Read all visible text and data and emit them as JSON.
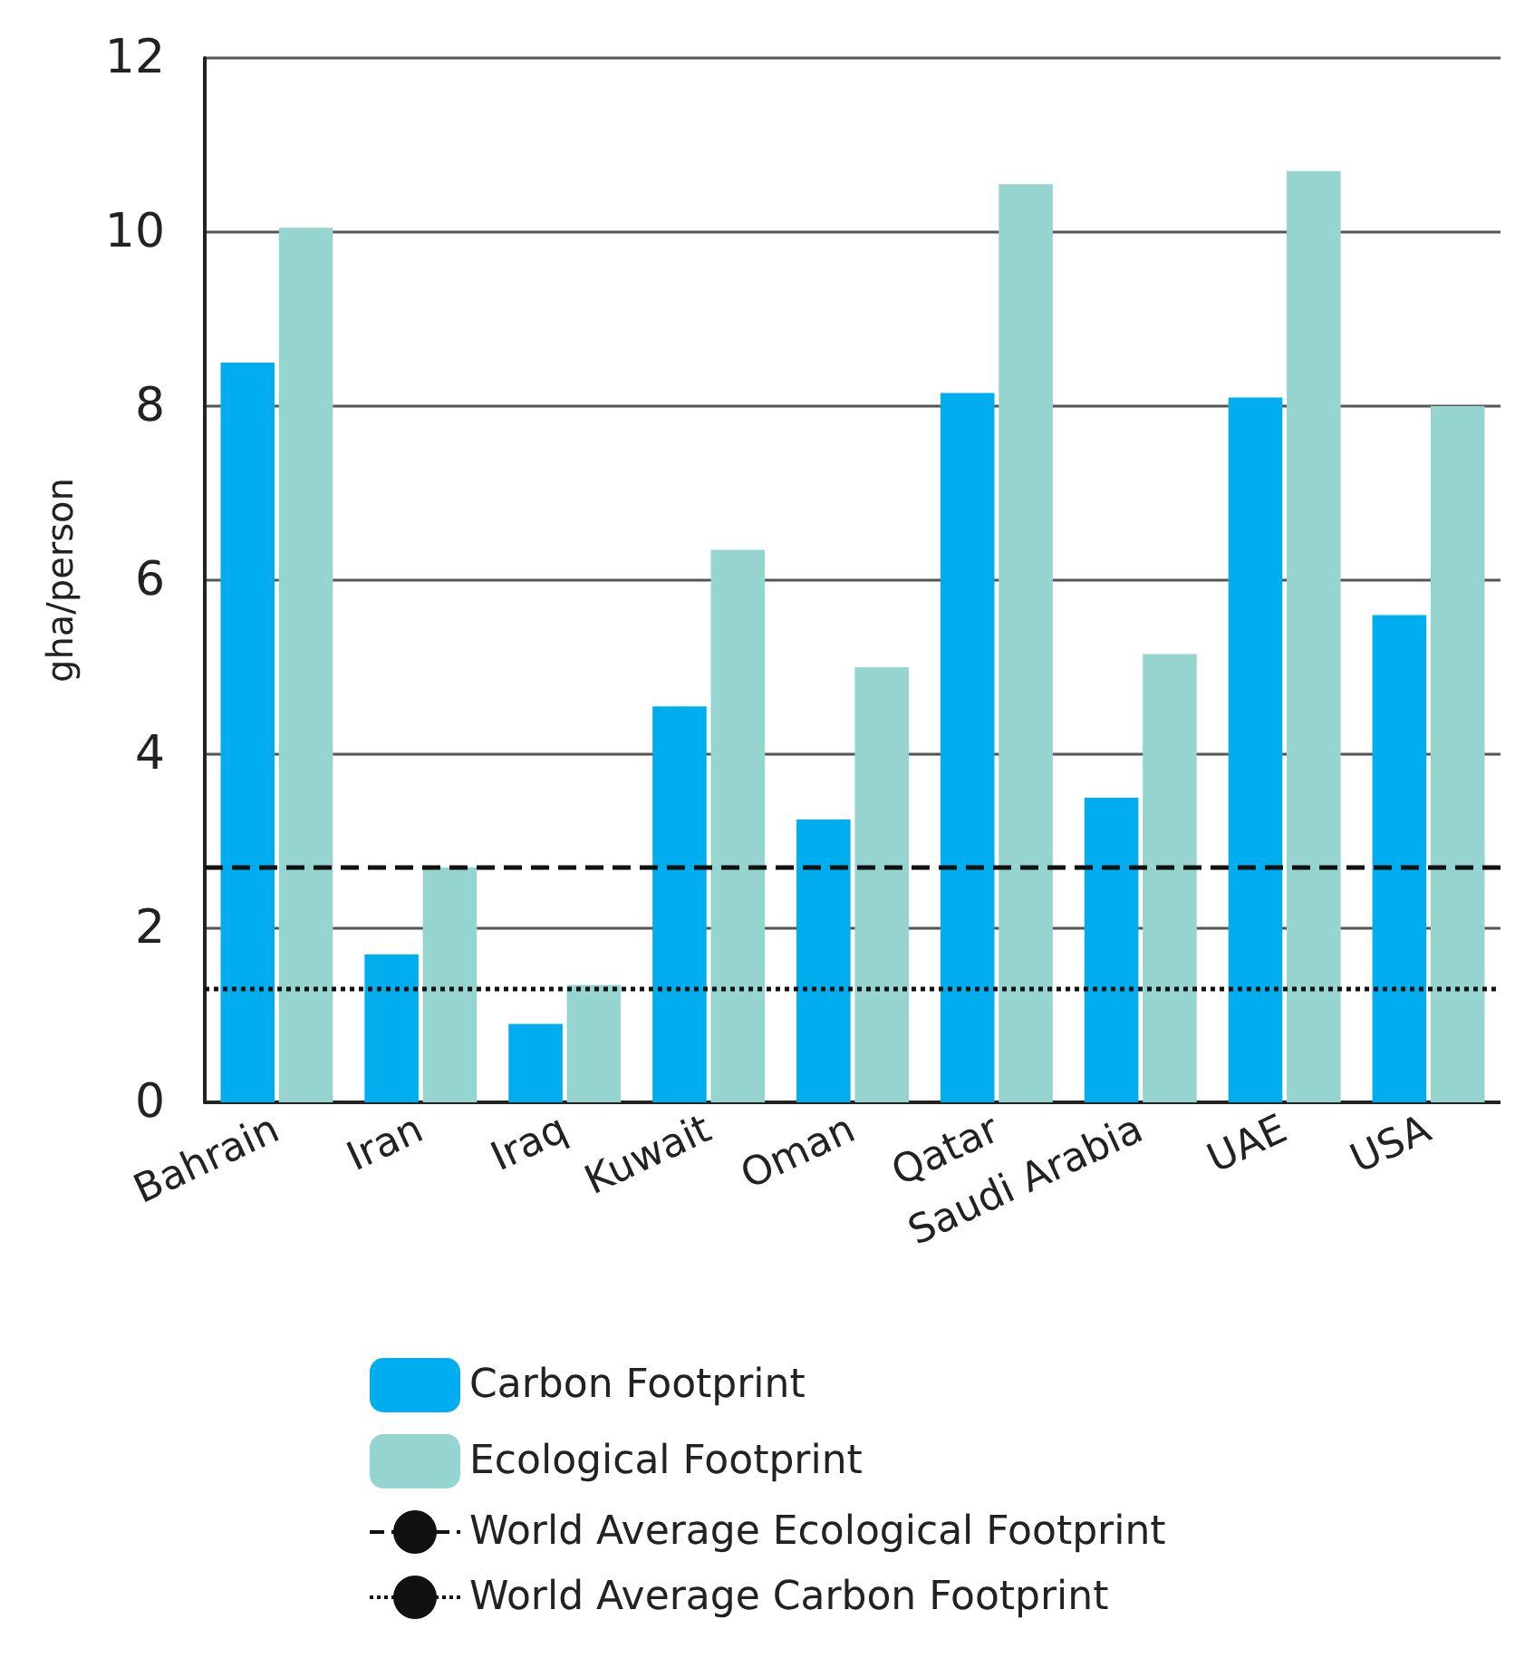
{
  "chart_data": {
    "type": "bar",
    "ylabel": "gha/person",
    "categories": [
      "Bahrain",
      "Iran",
      "Iraq",
      "Kuwait",
      "Oman",
      "Qatar",
      "Saudi Arabia",
      "UAE",
      "USA"
    ],
    "series": [
      {
        "name": "Carbon Footprint",
        "color": "#00aeef",
        "values": [
          8.5,
          1.7,
          0.9,
          4.55,
          3.25,
          8.15,
          3.5,
          8.1,
          5.6
        ]
      },
      {
        "name": "Ecological Footprint",
        "color": "#96d5cf",
        "values": [
          10.05,
          2.7,
          1.35,
          6.35,
          5.0,
          10.55,
          5.15,
          10.7,
          8.0
        ]
      }
    ],
    "ylim": [
      0,
      12
    ],
    "yticks": [
      0,
      2,
      4,
      6,
      8,
      10,
      12
    ],
    "grid": "y",
    "legend": "bottom",
    "ref_lines": [
      {
        "axis": "y",
        "value": 2.7,
        "label": "World Average Ecological Footprint",
        "color": "#111111",
        "line_style": "dashed"
      },
      {
        "axis": "y",
        "value": 1.3,
        "label": "World Average Carbon Footprint",
        "color": "#111111",
        "line_style": "dotted"
      }
    ]
  }
}
